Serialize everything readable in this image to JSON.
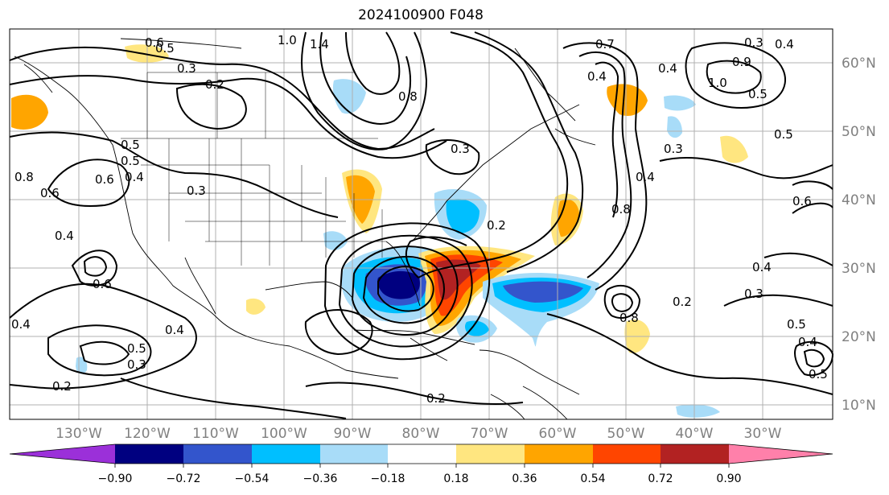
{
  "title": "2024100900 F048",
  "latitude_labels": [
    "60°N",
    "50°N",
    "40°N",
    "30°N",
    "20°N",
    "10°N"
  ],
  "longitude_labels": [
    "130°W",
    "120°W",
    "110°W",
    "100°W",
    "90°W",
    "80°W",
    "70°W",
    "60°W",
    "50°W",
    "40°W",
    "30°W"
  ],
  "colorbar": {
    "ticks": [
      "−0.90",
      "−0.72",
      "−0.54",
      "−0.36",
      "−0.18",
      "0.18",
      "0.36",
      "0.54",
      "0.72",
      "0.90"
    ],
    "colors": [
      "#9b30d9",
      "#000080",
      "#3355cc",
      "#00bfff",
      "#a8dcf8",
      "#ffffff",
      "#ffe680",
      "#ffa500",
      "#ff4500",
      "#b22222",
      "#ff80aa"
    ]
  },
  "contour_labels": [
    "0.6",
    "0.5",
    "0.3",
    "0.2",
    "1.0",
    "1.4",
    "0.8",
    "0.7",
    "0.4",
    "0.3",
    "0.4",
    "0.9",
    "1.0",
    "0.5",
    "0.3",
    "0.5",
    "0.6",
    "0.4",
    "0.8",
    "0.6",
    "0.5",
    "0.4",
    "0.4",
    "0.3",
    "0.2",
    "0.4",
    "0.3",
    "0.5",
    "0.4",
    "0.5",
    "0.8",
    "0.6",
    "0.5",
    "0.6",
    "0.4",
    "0.4",
    "0.5",
    "0.3",
    "0.2",
    "0.2",
    "0.3",
    "0.8",
    "0.4",
    "0.2"
  ]
}
